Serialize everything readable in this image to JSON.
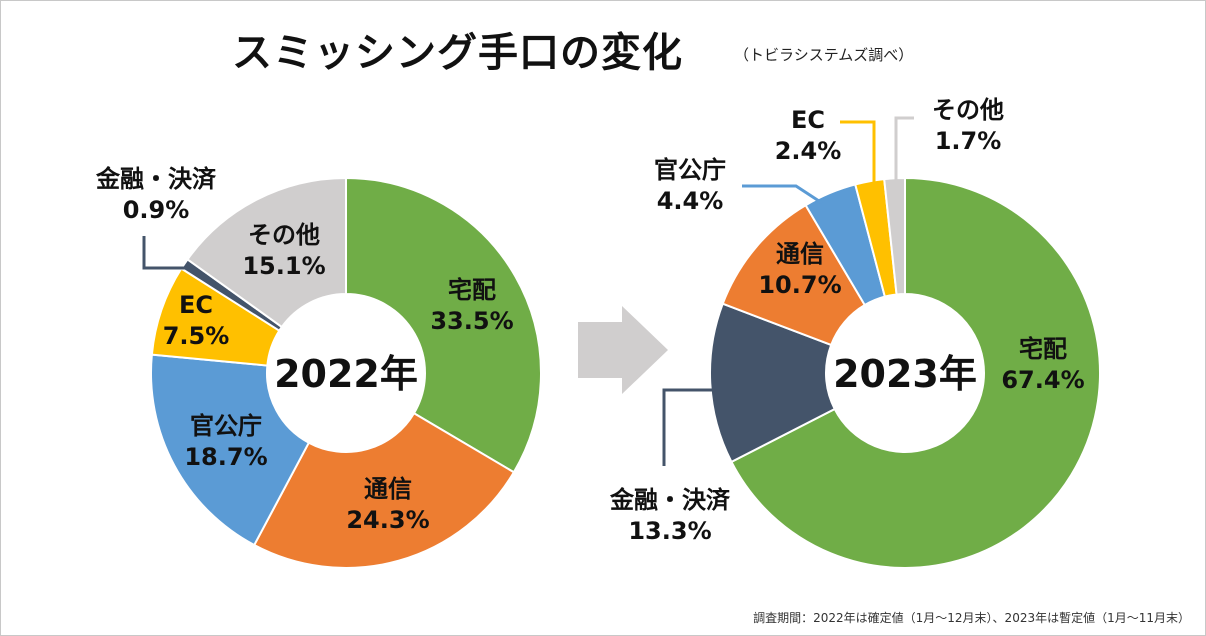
{
  "title": "スミッシング手口の変化",
  "subtitle": "（トビラシステムズ調べ）",
  "footnote": "調査期間：2022年は確定値（1月〜12月末）、2023年は暫定値（1月〜11月末）",
  "colors": {
    "takuhai": "#70AD47",
    "tsushin": "#ED7D31",
    "kankocho": "#5B9BD5",
    "ec": "#FFC000",
    "kinyu": "#44546A",
    "other": "#D0CECE",
    "arrow": "#D0CECE"
  },
  "chart_data": [
    {
      "type": "pie",
      "donut": true,
      "center_label": "2022年",
      "slices": [
        {
          "key": "takuhai",
          "name": "宅配",
          "pct_label": "33.5%",
          "value": 33.5,
          "color": "#70AD47"
        },
        {
          "key": "tsushin",
          "name": "通信",
          "pct_label": "24.3%",
          "value": 24.3,
          "color": "#ED7D31"
        },
        {
          "key": "kankocho",
          "name": "官公庁",
          "pct_label": "18.7%",
          "value": 18.7,
          "color": "#5B9BD5"
        },
        {
          "key": "ec",
          "name": "EC",
          "pct_label": "7.5%",
          "value": 7.5,
          "color": "#FFC000"
        },
        {
          "key": "kinyu",
          "name": "金融・決済",
          "pct_label": "0.9%",
          "value": 0.9,
          "color": "#44546A"
        },
        {
          "key": "other",
          "name": "その他",
          "pct_label": "15.1%",
          "value": 15.1,
          "color": "#D0CECE"
        }
      ]
    },
    {
      "type": "pie",
      "donut": true,
      "center_label": "2023年",
      "slices": [
        {
          "key": "takuhai",
          "name": "宅配",
          "pct_label": "67.4%",
          "value": 67.4,
          "color": "#70AD47"
        },
        {
          "key": "kinyu",
          "name": "金融・決済",
          "pct_label": "13.3%",
          "value": 13.3,
          "color": "#44546A"
        },
        {
          "key": "tsushin",
          "name": "通信",
          "pct_label": "10.7%",
          "value": 10.7,
          "color": "#ED7D31"
        },
        {
          "key": "kankocho",
          "name": "官公庁",
          "pct_label": "4.4%",
          "value": 4.4,
          "color": "#5B9BD5"
        },
        {
          "key": "ec",
          "name": "EC",
          "pct_label": "2.4%",
          "value": 2.4,
          "color": "#FFC000"
        },
        {
          "key": "other",
          "name": "その他",
          "pct_label": "1.7%",
          "value": 1.7,
          "color": "#D0CECE"
        }
      ]
    }
  ]
}
